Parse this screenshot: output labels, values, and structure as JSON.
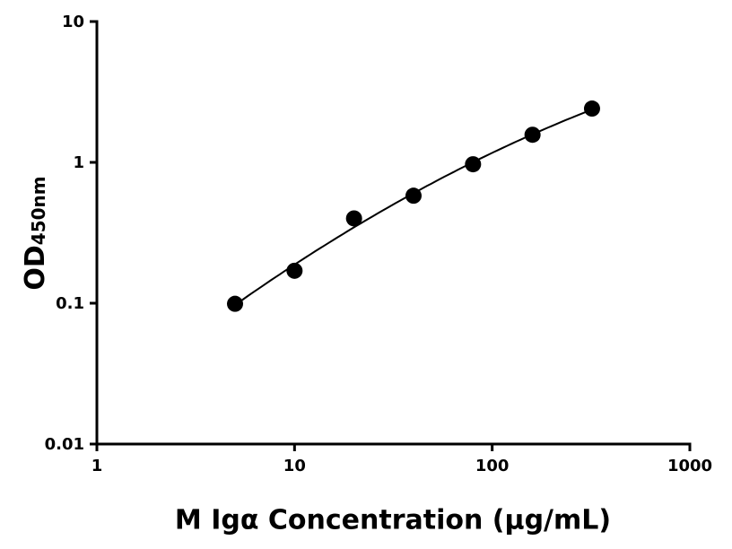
{
  "chart_data": {
    "type": "scatter",
    "x_label": "M Igα Concentration (μg/mL)",
    "y_label": "OD",
    "y_label_sub": "450nm",
    "x_log": true,
    "y_log": true,
    "xlim": [
      1,
      1000
    ],
    "xticks": [
      1,
      10,
      100,
      1000
    ],
    "ylim": [
      0.01,
      10
    ],
    "yticks": [
      0.01,
      0.1,
      1,
      10
    ],
    "fit_curve": true,
    "series": [
      {
        "color": "#000000",
        "x": [
          5,
          10,
          20,
          40,
          80,
          160,
          320
        ],
        "values": [
          0.099,
          0.17,
          0.4,
          0.58,
          0.97,
          1.57,
          2.41
        ]
      }
    ]
  }
}
